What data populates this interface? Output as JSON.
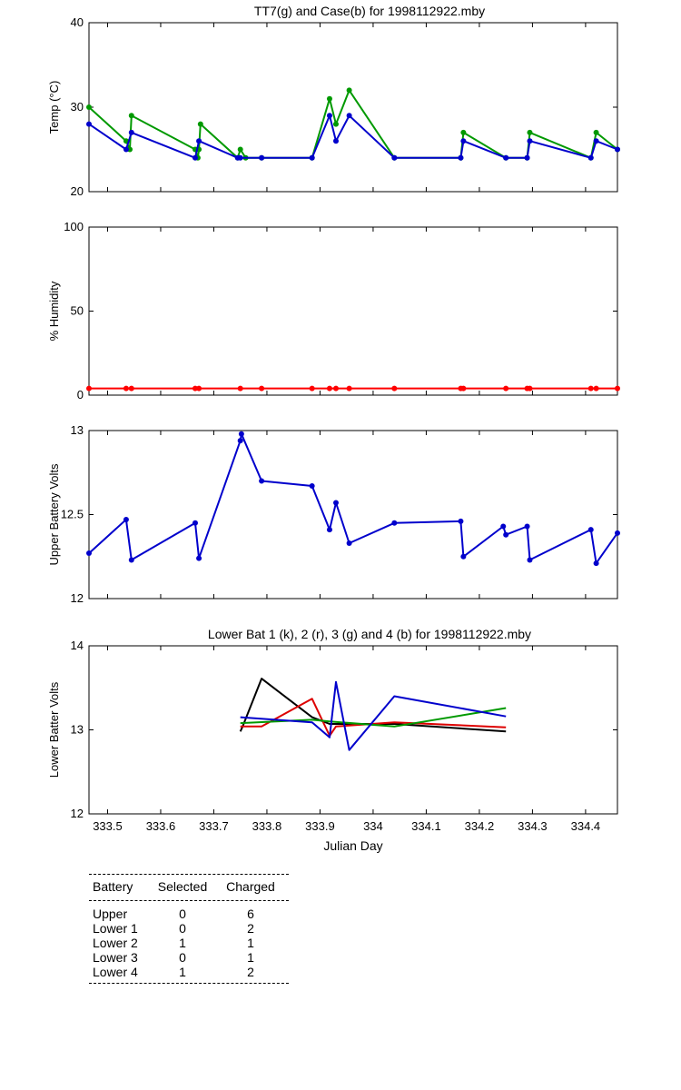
{
  "chart_data": [
    {
      "id": "temp",
      "type": "line",
      "title": "TT7(g) and Case(b) for 1998112922.mby",
      "xlabel": "",
      "ylabel": "Temp  (°C)",
      "xlim": [
        333.465,
        334.46
      ],
      "ylim": [
        20,
        40
      ],
      "yticks": [
        20,
        30,
        40
      ],
      "series": [
        {
          "color": "#009900",
          "marker": true,
          "x": [
            333.465,
            333.535,
            333.542,
            333.545,
            333.665,
            333.67,
            333.672,
            333.675,
            333.745,
            333.75,
            333.76,
            333.79,
            333.885,
            333.918,
            333.93,
            333.955,
            334.04,
            334.165,
            334.17,
            334.25,
            334.29,
            334.295,
            334.41,
            334.42,
            334.46
          ],
          "y": [
            30,
            26,
            25,
            29,
            25,
            24,
            25,
            28,
            24,
            25,
            24,
            24,
            24,
            31,
            28,
            32,
            24,
            24,
            27,
            24,
            24,
            27,
            24,
            27,
            25
          ]
        },
        {
          "color": "#0000cc",
          "marker": true,
          "x": [
            333.465,
            333.535,
            333.545,
            333.665,
            333.672,
            333.745,
            333.75,
            333.79,
            333.885,
            333.918,
            333.93,
            333.955,
            334.04,
            334.165,
            334.17,
            334.25,
            334.29,
            334.295,
            334.41,
            334.42,
            334.46
          ],
          "y": [
            28,
            25,
            27,
            24,
            26,
            24,
            24,
            24,
            24,
            29,
            26,
            29,
            24,
            24,
            26,
            24,
            24,
            26,
            24,
            26,
            25
          ]
        }
      ]
    },
    {
      "id": "humidity",
      "type": "line",
      "title": "",
      "xlabel": "",
      "ylabel": "% Humidity",
      "xlim": [
        333.465,
        334.46
      ],
      "ylim": [
        0,
        100
      ],
      "yticks": [
        0,
        50,
        100
      ],
      "series": [
        {
          "color": "#ff0000",
          "marker": true,
          "x": [
            333.465,
            333.535,
            333.545,
            333.665,
            333.672,
            333.75,
            333.79,
            333.885,
            333.918,
            333.93,
            333.955,
            334.04,
            334.165,
            334.17,
            334.25,
            334.29,
            334.295,
            334.41,
            334.42,
            334.46
          ],
          "y": [
            4,
            4,
            4,
            4,
            4,
            4,
            4,
            4,
            4,
            4,
            4,
            4,
            4,
            4,
            4,
            4,
            4,
            4,
            4,
            4
          ]
        }
      ]
    },
    {
      "id": "upper",
      "type": "line",
      "title": "",
      "xlabel": "",
      "ylabel": "Upper Battery Volts",
      "xlim": [
        333.465,
        334.46
      ],
      "ylim": [
        12,
        13
      ],
      "yticks": [
        12,
        12.5,
        13
      ],
      "series": [
        {
          "color": "#0000cc",
          "marker": true,
          "x": [
            333.465,
            333.535,
            333.545,
            333.665,
            333.672,
            333.75,
            333.752,
            333.79,
            333.885,
            333.918,
            333.93,
            333.955,
            334.04,
            334.165,
            334.17,
            334.245,
            334.25,
            334.29,
            334.295,
            334.41,
            334.42,
            334.46
          ],
          "y": [
            12.27,
            12.47,
            12.23,
            12.45,
            12.24,
            12.94,
            12.98,
            12.7,
            12.67,
            12.41,
            12.57,
            12.33,
            12.45,
            12.46,
            12.25,
            12.43,
            12.38,
            12.43,
            12.23,
            12.41,
            12.21,
            12.39
          ]
        }
      ]
    },
    {
      "id": "lower",
      "type": "line",
      "title": "Lower Bat 1 (k), 2 (r), 3 (g) and 4 (b) for 1998112922.mby",
      "xlabel": "Julian Day",
      "ylabel": "Lower Batter Volts",
      "xlim": [
        333.465,
        334.46
      ],
      "ylim": [
        12,
        14
      ],
      "yticks": [
        12,
        13,
        14
      ],
      "xticks": [
        333.5,
        333.6,
        333.7,
        333.8,
        333.9,
        334,
        334.1,
        334.2,
        334.3,
        334.4
      ],
      "xticklabels": [
        "333.5",
        "333.6",
        "333.7",
        "333.8",
        "333.9",
        "334",
        "334.1",
        "334.2",
        "334.3",
        "334.4"
      ],
      "series": [
        {
          "color": "#000000",
          "marker": false,
          "x": [
            333.75,
            333.755,
            333.79,
            333.885,
            333.918,
            334.04,
            334.25
          ],
          "y": [
            12.98,
            13.05,
            13.61,
            13.15,
            13.07,
            13.07,
            12.98
          ]
        },
        {
          "color": "#dd0000",
          "marker": false,
          "x": [
            333.75,
            333.79,
            333.885,
            333.918,
            333.93,
            334.04,
            334.25
          ],
          "y": [
            13.04,
            13.04,
            13.37,
            12.93,
            13.04,
            13.09,
            13.03
          ]
        },
        {
          "color": "#009900",
          "marker": false,
          "x": [
            333.75,
            333.885,
            333.918,
            334.04,
            334.25
          ],
          "y": [
            13.08,
            13.12,
            13.1,
            13.04,
            13.26
          ]
        },
        {
          "color": "#0000cc",
          "marker": false,
          "x": [
            333.75,
            333.885,
            333.918,
            333.93,
            333.955,
            334.04,
            334.25
          ],
          "y": [
            13.15,
            13.09,
            12.91,
            13.57,
            12.76,
            13.4,
            13.16
          ]
        }
      ]
    }
  ],
  "battery_table": {
    "headers": [
      "Battery",
      "Selected",
      "Charged"
    ],
    "rows": [
      [
        "Upper",
        "0",
        "6"
      ],
      [
        "Lower 1",
        "0",
        "2"
      ],
      [
        "Lower 2",
        "1",
        "1"
      ],
      [
        "Lower 3",
        "0",
        "1"
      ],
      [
        "Lower 4",
        "1",
        "2"
      ]
    ]
  }
}
